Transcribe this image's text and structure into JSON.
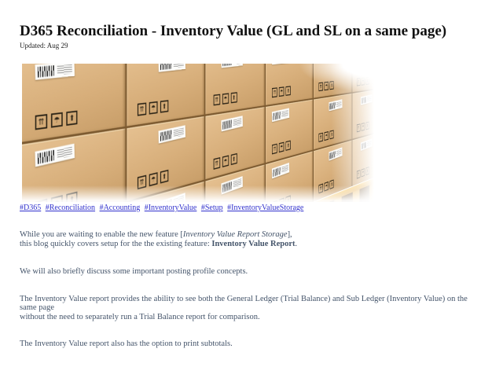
{
  "page": {
    "title": "D365 Reconciliation - Inventory Value (GL and SL on a same page)",
    "updated": "Updated: Aug 29"
  },
  "hashtags": [
    "#D365",
    "#Reconciliation",
    "#Accounting",
    "#InventoryValue",
    "#Setup",
    "#InventoryValueStorage"
  ],
  "paragraphs": {
    "p1": {
      "pre": "While you are waiting to enable the new feature [",
      "italic": "Inventory Value Report Storage",
      "post": "],",
      "line2_pre": "this blog quickly covers setup for the the existing feature: ",
      "bold": "Inventory Value Report",
      "line2_post": "."
    },
    "p2": "We will also briefly discuss some important posting profile concepts.",
    "p3_line1": "The Inventory Value report provides the ability to see both the General Ledger (Trial Balance) and Sub Ledger (Inventory Value) on the same page",
    "p3_line2": "without the need to separately run a Trial Balance report for comparison.",
    "p4": "The Inventory Value report also has the option to print subtotals."
  },
  "photo": {
    "symbols": [
      {
        "name": "this-way-up-icon",
        "glyph": "⇈"
      },
      {
        "name": "umbrella-keep-dry-icon",
        "glyph": "☂"
      },
      {
        "name": "fragile-arrow-icon",
        "glyph": "⬆"
      }
    ],
    "box_count": 30
  },
  "colors": {
    "body_text": "#44546a",
    "link_blue": "#3232cd",
    "title_black": "#111111",
    "box_tan": "#d7ae7a",
    "pallet_orange": "#e8ad45",
    "pallet_slot_brown": "#55320a"
  }
}
